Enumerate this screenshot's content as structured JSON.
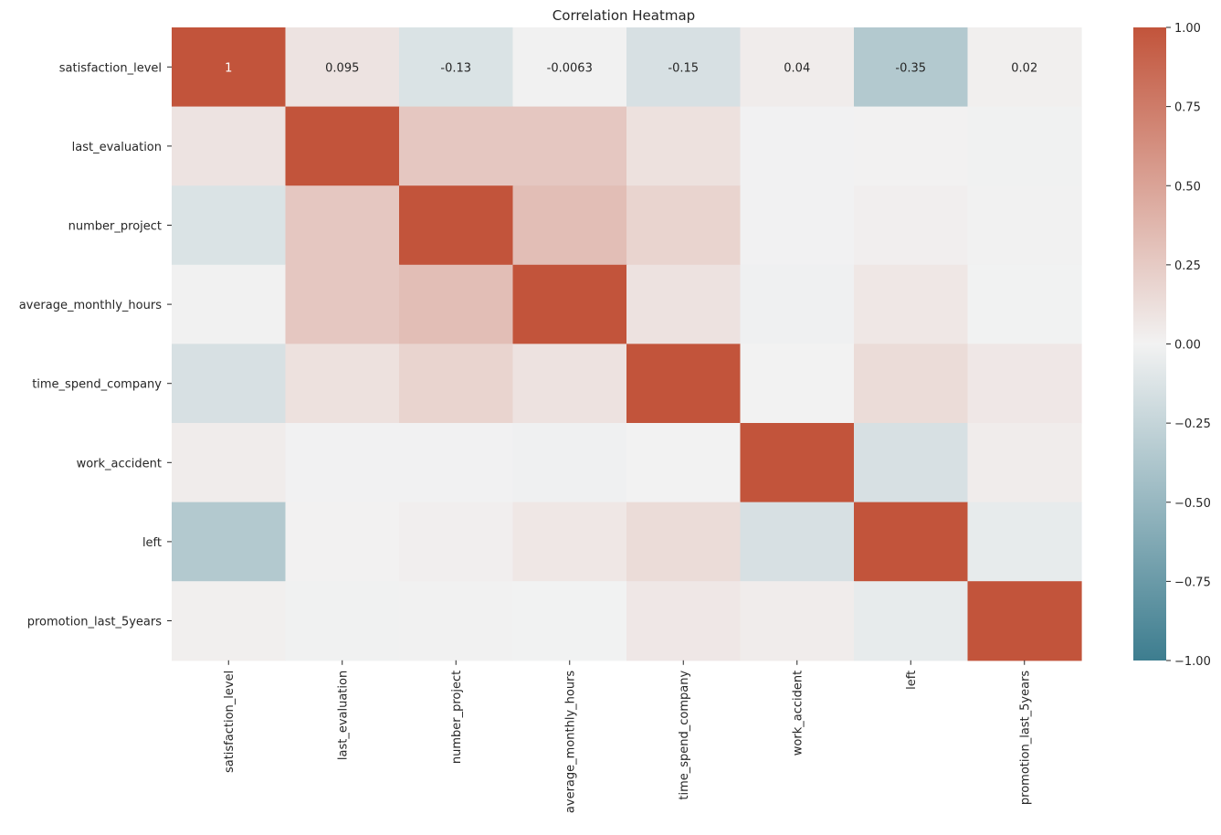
{
  "chart_data": {
    "type": "heatmap",
    "title": "Correlation Heatmap",
    "xlabel": "",
    "ylabel": "",
    "row_labels": [
      "satisfaction_level",
      "last_evaluation",
      "number_project",
      "average_monthly_hours",
      "time_spend_company",
      "work_accident",
      "left",
      "promotion_last_5years"
    ],
    "col_labels": [
      "satisfaction_level",
      "last_evaluation",
      "number_project",
      "average_monthly_hours",
      "time_spend_company",
      "work_accident",
      "left",
      "promotion_last_5years"
    ],
    "values": [
      [
        1.0,
        0.095,
        -0.13,
        -0.0063,
        -0.15,
        0.04,
        -0.35,
        0.02
      ],
      [
        0.095,
        1.0,
        0.27,
        0.27,
        0.11,
        -0.0046,
        0.0066,
        -0.0087
      ],
      [
        -0.13,
        0.27,
        1.0,
        0.33,
        0.19,
        -0.0047,
        0.024,
        -0.0061
      ],
      [
        -0.0063,
        0.27,
        0.33,
        1.0,
        0.1,
        -0.014,
        0.071,
        -0.0035
      ],
      [
        -0.15,
        0.11,
        0.19,
        0.1,
        1.0,
        0.0021,
        0.14,
        0.067
      ],
      [
        0.04,
        -0.0046,
        -0.0047,
        -0.014,
        0.0021,
        1.0,
        -0.15,
        0.039
      ],
      [
        -0.35,
        0.0066,
        0.024,
        0.071,
        0.14,
        -0.15,
        1.0,
        -0.062
      ],
      [
        0.02,
        -0.0087,
        -0.0061,
        -0.0035,
        0.067,
        0.039,
        -0.062,
        1.0
      ]
    ],
    "annotations": [
      {
        "row": 0,
        "col": 0,
        "text": "1"
      },
      {
        "row": 0,
        "col": 1,
        "text": "0.095"
      },
      {
        "row": 0,
        "col": 2,
        "text": "-0.13"
      },
      {
        "row": 0,
        "col": 3,
        "text": "-0.0063"
      },
      {
        "row": 0,
        "col": 4,
        "text": "-0.15"
      },
      {
        "row": 0,
        "col": 5,
        "text": "0.04"
      },
      {
        "row": 0,
        "col": 6,
        "text": "-0.35"
      },
      {
        "row": 0,
        "col": 7,
        "text": "0.02"
      }
    ],
    "vmin": -1.0,
    "vmax": 1.0,
    "colorbar_ticks": [
      "1.00",
      "0.75",
      "0.50",
      "0.25",
      "0.00",
      "−0.25",
      "−0.50",
      "−0.75",
      "−1.00"
    ],
    "colorbar_tick_values": [
      1.0,
      0.75,
      0.5,
      0.25,
      0.0,
      -0.25,
      -0.5,
      -0.75,
      -1.0
    ],
    "colormap": {
      "negative": "#3d7d8f",
      "center": "#f2f2f2",
      "positive": "#c2543b"
    }
  }
}
